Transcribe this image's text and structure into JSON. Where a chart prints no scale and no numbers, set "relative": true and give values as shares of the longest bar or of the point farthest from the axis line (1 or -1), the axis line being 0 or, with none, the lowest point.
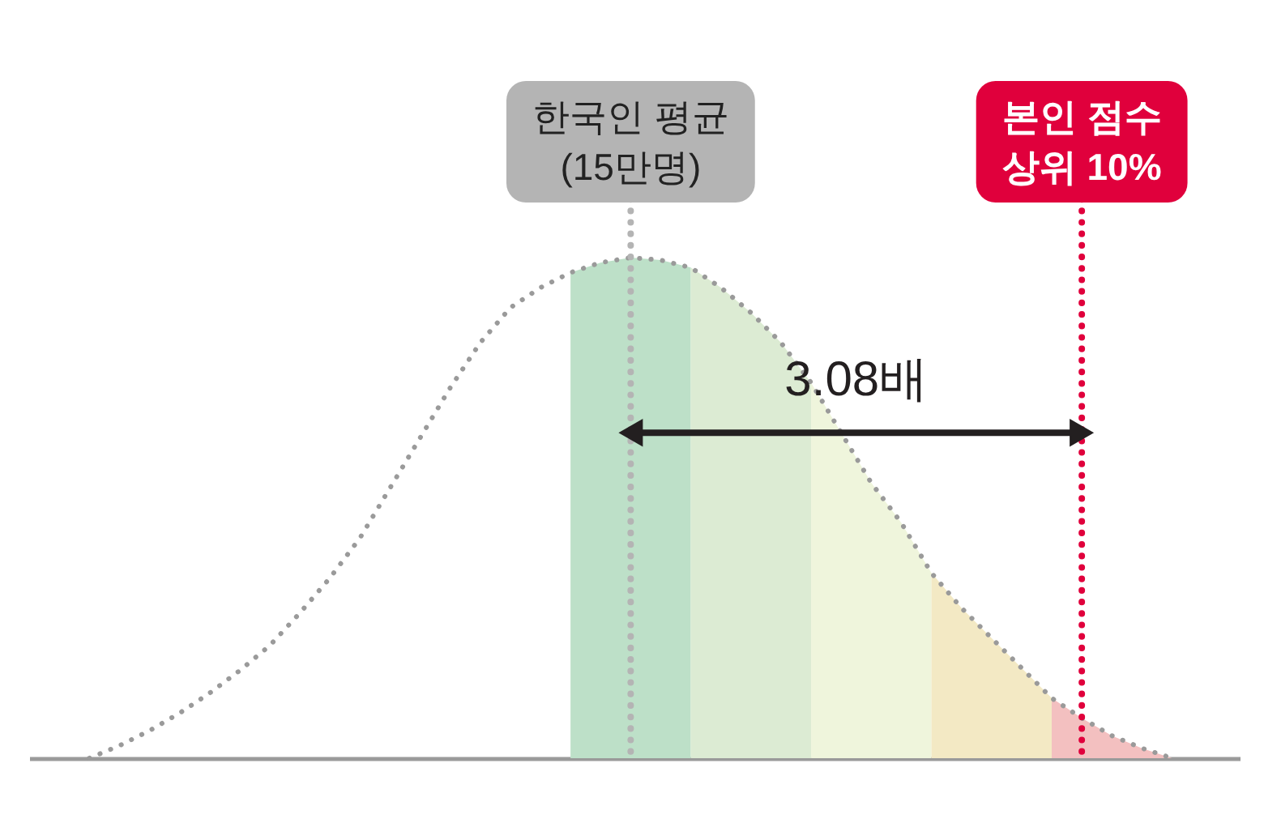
{
  "chart_data": {
    "type": "line",
    "relative": true,
    "categories": [
      null,
      null,
      null,
      null,
      null,
      null,
      null,
      null,
      null,
      null,
      null,
      null,
      null,
      null,
      null,
      null,
      null,
      null,
      null,
      null,
      null,
      null,
      null,
      null,
      null,
      null,
      null,
      null,
      null,
      null,
      null,
      null,
      null,
      null,
      null,
      null,
      null
    ],
    "series": [
      {
        "type": "area",
        "color": "#bde0c8",
        "values": [
          null,
          null,
          null,
          null,
          null,
          null,
          null,
          null,
          null,
          null,
          null,
          null,
          null,
          null,
          null,
          null,
          0.97,
          0.99,
          1,
          0.995,
          0.98,
          null,
          null,
          null,
          null,
          null,
          null,
          null,
          null,
          null,
          null,
          null,
          null,
          null,
          null,
          null,
          null
        ]
      },
      {
        "type": "area",
        "color": "#dcebd3",
        "values": [
          null,
          null,
          null,
          null,
          null,
          null,
          null,
          null,
          null,
          null,
          null,
          null,
          null,
          null,
          null,
          null,
          null,
          null,
          null,
          null,
          0.98,
          0.94,
          0.89,
          0.83,
          0.75,
          null,
          null,
          null,
          null,
          null,
          null,
          null,
          null,
          null,
          null,
          null,
          null
        ]
      },
      {
        "type": "area",
        "color": "#eff5dc",
        "values": [
          null,
          null,
          null,
          null,
          null,
          null,
          null,
          null,
          null,
          null,
          null,
          null,
          null,
          null,
          null,
          null,
          null,
          null,
          null,
          null,
          null,
          null,
          null,
          null,
          0.75,
          0.65,
          0.55,
          0.47,
          0.37,
          null,
          null,
          null,
          null,
          null,
          null,
          null,
          null
        ]
      },
      {
        "type": "area",
        "color": "#f3e9c4",
        "values": [
          null,
          null,
          null,
          null,
          null,
          null,
          null,
          null,
          null,
          null,
          null,
          null,
          null,
          null,
          null,
          null,
          null,
          null,
          null,
          null,
          null,
          null,
          null,
          null,
          null,
          null,
          null,
          null,
          0.37,
          0.3,
          0.24,
          0.18,
          0.12,
          null,
          null,
          null,
          null
        ]
      },
      {
        "type": "area",
        "color": "#f3c0c0",
        "values": [
          null,
          null,
          null,
          null,
          null,
          null,
          null,
          null,
          null,
          null,
          null,
          null,
          null,
          null,
          null,
          null,
          null,
          null,
          null,
          null,
          null,
          null,
          null,
          null,
          null,
          null,
          null,
          null,
          null,
          null,
          null,
          null,
          0.12,
          0.08,
          0.045,
          0.02,
          0
        ]
      },
      {
        "color": "#9a9a9a",
        "line_style": "dotted",
        "values": [
          0,
          0.025,
          0.055,
          0.09,
          0.13,
          0.175,
          0.225,
          0.29,
          0.36,
          0.44,
          0.54,
          0.64,
          0.74,
          0.83,
          0.9,
          0.94,
          0.97,
          0.99,
          1,
          0.995,
          0.98,
          0.94,
          0.89,
          0.83,
          0.75,
          0.65,
          0.55,
          0.47,
          0.37,
          0.3,
          0.24,
          0.18,
          0.12,
          0.08,
          0.045,
          0.02,
          0
        ]
      }
    ],
    "annotations": [
      "한국인 평균\n(15만명)",
      "본인 점수\n상위 10%",
      "3.08배"
    ]
  }
}
